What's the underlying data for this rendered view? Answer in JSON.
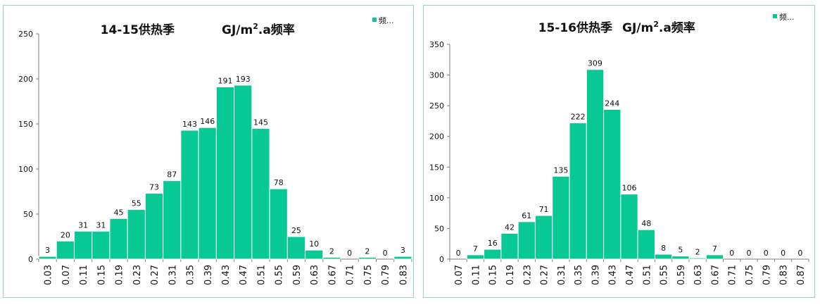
{
  "colors": {
    "bar": "#08c993",
    "bar_stroke": "#ffffff",
    "axis": "#7f7f7f",
    "border": "#8fd6c4"
  },
  "chart_data": [
    {
      "type": "bar",
      "title": {
        "prefix": "14-15供热季",
        "unit_main": "GJ/m",
        "unit_sup": "2",
        "unit_tail": ".a频率"
      },
      "legend": {
        "label": "频...",
        "position": "top-right"
      },
      "categories": [
        "0.03",
        "0.07",
        "0.11",
        "0.15",
        "0.19",
        "0.23",
        "0.27",
        "0.31",
        "0.35",
        "0.39",
        "0.43",
        "0.47",
        "0.51",
        "0.55",
        "0.59",
        "0.63",
        "0.67",
        "0.71",
        "0.75",
        "0.79",
        "0.83"
      ],
      "values": [
        3,
        20,
        31,
        31,
        45,
        55,
        73,
        87,
        143,
        146,
        191,
        193,
        145,
        78,
        25,
        10,
        2,
        0,
        2,
        0,
        3
      ],
      "ylim": [
        0,
        250
      ],
      "yticks": [
        0,
        50,
        100,
        150,
        200,
        250
      ],
      "xlabel": "",
      "ylabel": ""
    },
    {
      "type": "bar",
      "title": {
        "prefix": "15-16供热季",
        "unit_main": "GJ/m",
        "unit_sup": "2",
        "unit_tail": ".a频率"
      },
      "legend": {
        "label": "频...",
        "position": "top-right"
      },
      "categories": [
        "0.07",
        "0.11",
        "0.15",
        "0.19",
        "0.23",
        "0.27",
        "0.31",
        "0.35",
        "0.39",
        "0.43",
        "0.47",
        "0.51",
        "0.55",
        "0.59",
        "0.63",
        "0.67",
        "0.71",
        "0.75",
        "0.79",
        "0.83",
        "0.87"
      ],
      "values": [
        0,
        7,
        16,
        42,
        61,
        71,
        135,
        222,
        309,
        244,
        106,
        48,
        8,
        5,
        2,
        7,
        0,
        0,
        0,
        0,
        0
      ],
      "ylim": [
        0,
        350
      ],
      "yticks": [
        0,
        50,
        100,
        150,
        200,
        250,
        300,
        350
      ],
      "xlabel": "",
      "ylabel": ""
    }
  ]
}
